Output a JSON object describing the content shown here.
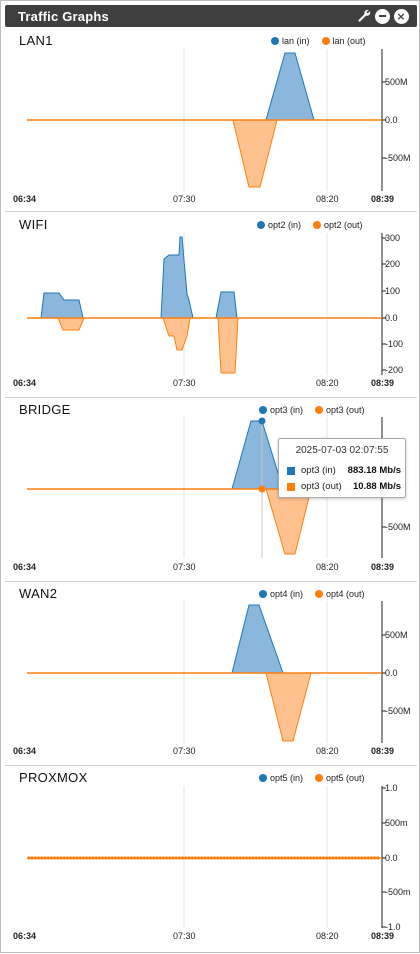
{
  "widget": {
    "title": "Traffic Graphs",
    "icons": [
      "wrench-icon",
      "minimize-icon",
      "close-icon"
    ]
  },
  "colors": {
    "in": "#1f77b4",
    "out": "#ff7f0e",
    "in_fill": "#8cb7dc",
    "out_fill": "#ffc28e"
  },
  "x_axis": {
    "start": "06:34",
    "mid1": "07:30",
    "mid2": "08:20",
    "end": "08:39"
  },
  "panels": [
    {
      "name": "LAN1",
      "legend_in": "lan (in)",
      "legend_out": "lan (out)",
      "y_ticks": [
        "500M",
        "0.0",
        "-500M"
      ]
    },
    {
      "name": "WIFI",
      "legend_in": "opt2 (in)",
      "legend_out": "opt2 (out)",
      "y_ticks": [
        "300",
        "200",
        "100",
        "0.0",
        "-100",
        "-200"
      ]
    },
    {
      "name": "BRIDGE",
      "legend_in": "opt3 (in)",
      "legend_out": "opt3 (out)",
      "y_ticks": [
        "-500M"
      ]
    },
    {
      "name": "WAN2",
      "legend_in": "opt4 (in)",
      "legend_out": "opt4 (out)",
      "y_ticks": [
        "500M",
        "0.0",
        "-500M"
      ]
    },
    {
      "name": "PROXMOX",
      "legend_in": "opt5 (in)",
      "legend_out": "opt5 (out)",
      "y_ticks": [
        "1.0",
        "500m",
        "0.0",
        "-500m",
        "-1.0"
      ]
    }
  ],
  "tooltip": {
    "date": "2025-07-03 02:07:55",
    "rows": [
      {
        "label": "opt3 (in)",
        "value": "883.18 Mb/s"
      },
      {
        "label": "opt3 (out)",
        "value": "10.88 Mb/s"
      }
    ]
  }
}
